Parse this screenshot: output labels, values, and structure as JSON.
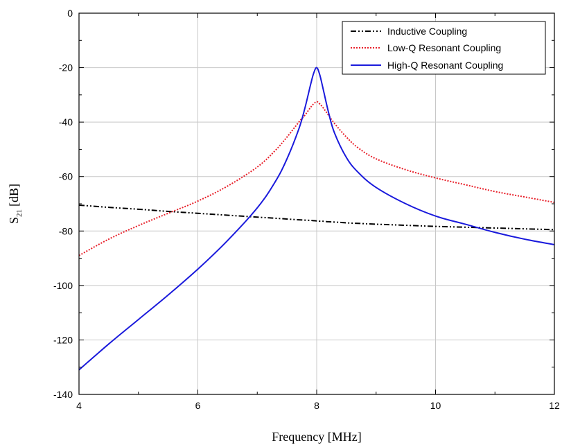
{
  "chart_data": {
    "type": "line",
    "xlabel": "Frequency [MHz]",
    "ylabel_main": "S",
    "ylabel_sub": "21",
    "ylabel_unit": "[dB]",
    "xlim": [
      4,
      12
    ],
    "ylim": [
      -140,
      0
    ],
    "xticks": [
      4,
      6,
      8,
      10,
      12
    ],
    "yticks": [
      0,
      -20,
      -40,
      -60,
      -80,
      -100,
      -120,
      -140
    ],
    "grid": true,
    "legend_position": "top-right",
    "x": [
      4,
      4.5,
      5,
      5.5,
      6,
      6.5,
      7,
      7.3,
      7.5,
      7.7,
      7.8,
      7.9,
      7.95,
      8.0,
      8.05,
      8.1,
      8.2,
      8.3,
      8.5,
      8.7,
      9,
      9.5,
      10,
      10.5,
      11,
      11.5,
      12
    ],
    "series": [
      {
        "name": "Inductive Coupling",
        "color": "#000000",
        "dash": "dashdotdot",
        "values": [
          -70.5,
          -71.3,
          -72.0,
          -72.8,
          -73.5,
          -74.2,
          -74.9,
          -75.3,
          -75.6,
          -75.9,
          -76.0,
          -76.1,
          -76.2,
          -76.3,
          -76.4,
          -76.4,
          -76.6,
          -76.7,
          -77.0,
          -77.2,
          -77.5,
          -77.9,
          -78.3,
          -78.6,
          -78.9,
          -79.2,
          -79.5
        ]
      },
      {
        "name": "Low-Q Resonant Coupling",
        "color": "#e8202a",
        "dash": "dotted",
        "values": [
          -89,
          -83,
          -78,
          -73.5,
          -69,
          -63.5,
          -56.5,
          -50.5,
          -45.5,
          -40,
          -37.5,
          -34.5,
          -33.3,
          -32.5,
          -33.3,
          -34.5,
          -37.5,
          -40.5,
          -45.5,
          -49.5,
          -53.5,
          -57.5,
          -60.5,
          -63,
          -65.5,
          -67.5,
          -69.5
        ]
      },
      {
        "name": "High-Q Resonant Coupling",
        "color": "#1a1adc",
        "dash": "solid",
        "values": [
          -131,
          -121.5,
          -112.5,
          -103.5,
          -94,
          -83.5,
          -71.5,
          -62,
          -53.5,
          -42.5,
          -35,
          -26,
          -22,
          -20,
          -22.5,
          -27,
          -36.5,
          -44,
          -53,
          -58.5,
          -64,
          -70,
          -74.5,
          -77.5,
          -80.5,
          -83,
          -85
        ]
      }
    ]
  }
}
